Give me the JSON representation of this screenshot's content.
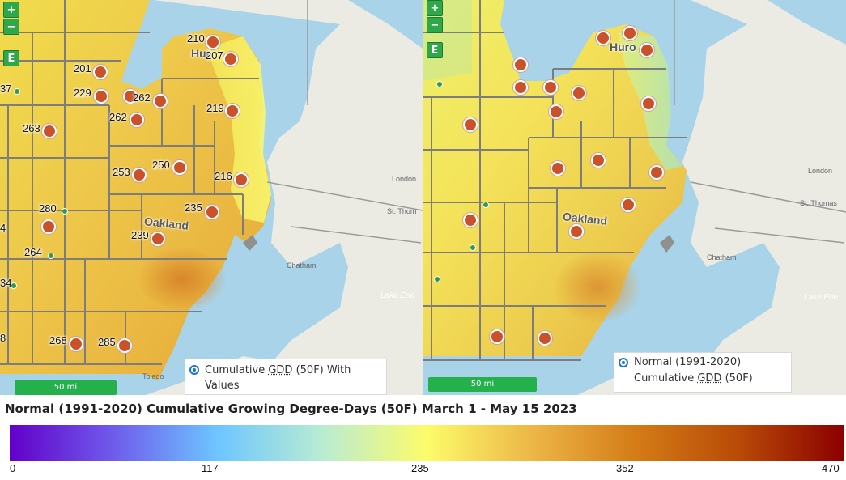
{
  "map_left": {
    "zoom_in": "+",
    "zoom_out": "−",
    "extent_button": "E",
    "layer_label_line1": "Cumulative GDD (50F) With",
    "layer_label_line2": "Values",
    "layer_label_abbr": "GDD",
    "scale_label": "50 mi",
    "place_oakland": "Oakland",
    "place_huron": "Hur",
    "city_london": "London",
    "city_st_thomas": "St. Thom",
    "city_chatham": "Chatham",
    "city_toledo": "Toledo",
    "lake_erie": "Lake Erie",
    "station_values": [
      "210",
      "207",
      "201",
      "229",
      "262",
      "262",
      "219",
      "263",
      "250",
      "253",
      "216",
      "235",
      "280",
      "239",
      "264",
      "268",
      "285"
    ],
    "partial_values": [
      "37",
      "4",
      "34",
      "8"
    ]
  },
  "map_right": {
    "zoom_in": "+",
    "zoom_out": "−",
    "extent_button": "E",
    "layer_label_line1": "Normal (1991-2020)",
    "layer_label_line2": "Cumulative GDD (50F)",
    "scale_label": "50 mi",
    "place_oakland": "Oakland",
    "place_huron": "Huro",
    "city_london": "London",
    "city_st_thomas": "St. Thomas",
    "city_chatham": "Chatham",
    "lake_erie": "Lake Erie"
  },
  "legend": {
    "title": "Normal (1991-2020) Cumulative Growing Degree-Days (50F) March 1 - May 15 2023",
    "ticks": [
      "0",
      "117",
      "235",
      "352",
      "470"
    ],
    "color_stops": [
      "#6300c9",
      "#6f5cec",
      "#6ec6ff",
      "#b9ecd2",
      "#fcfc6b",
      "#edb747",
      "#d47c17",
      "#b84a07",
      "#8b0000"
    ],
    "min": 0,
    "max": 470
  },
  "colors": {
    "station_marker": "#c9522a",
    "aux_station_marker": "#2f9a55",
    "button_green": "#2ea84a",
    "radio_blue": "#1a73d9",
    "water": "#a9d3e8",
    "land": "#ebebe4"
  }
}
